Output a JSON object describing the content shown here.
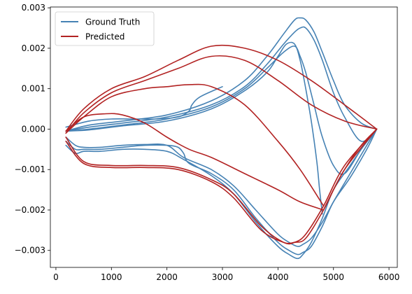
{
  "chart_data": {
    "type": "line",
    "title": "",
    "xlabel": "",
    "ylabel": "",
    "xlim": [
      -100,
      6150
    ],
    "ylim": [
      -0.00342,
      0.00302
    ],
    "x_ticks": [
      0,
      1000,
      2000,
      3000,
      4000,
      5000,
      6000
    ],
    "x_tick_labels": [
      "0",
      "1000",
      "2000",
      "3000",
      "4000",
      "5000",
      "6000"
    ],
    "y_ticks": [
      -0.003,
      -0.002,
      -0.001,
      0.0,
      0.001,
      0.002,
      0.003
    ],
    "y_tick_labels": [
      "−0.003",
      "−0.002",
      "−0.001",
      "0.000",
      "0.001",
      "0.002",
      "0.003"
    ],
    "grid": false,
    "legend_position": "upper-left",
    "legend": [
      {
        "label": "Ground Truth",
        "color": "#4682b4"
      },
      {
        "label": "Predicted",
        "color": "#b22222"
      }
    ],
    "series": [
      {
        "name": "Ground Truth",
        "color": "#4682b4",
        "traces": [
          {
            "x": [
              180,
              600,
              1200,
              2000,
              2800,
              3400,
              3800,
              4100,
              4300,
              4400,
              4500,
              4650,
              4800,
              5000,
              5200,
              5500,
              5780
            ],
            "y": [
              -5e-05,
              0.0001,
              0.0002,
              0.00035,
              0.0007,
              0.0012,
              0.0018,
              0.00235,
              0.0027,
              0.00275,
              0.0027,
              0.0024,
              0.0019,
              0.0012,
              0.0006,
              0.00015,
              0.0
            ]
          },
          {
            "x": [
              180,
              600,
              1200,
              2000,
              2800,
              3400,
              3800,
              4100,
              4300,
              4400,
              4500,
              4650,
              4800,
              5000,
              5200,
              5500,
              5780
            ],
            "y": [
              -5e-05,
              5e-05,
              0.00015,
              0.0003,
              0.0006,
              0.00105,
              0.0016,
              0.0021,
              0.0024,
              0.0025,
              0.0025,
              0.0022,
              0.0017,
              0.0009,
              0.0003,
              -0.0003,
              0.0
            ]
          },
          {
            "x": [
              180,
              600,
              1200,
              2000,
              2800,
              3400,
              3800,
              4100,
              4300,
              4400,
              4500,
              4650,
              4800,
              5000,
              5200,
              5500,
              5780
            ],
            "y": [
              -5e-05,
              0.0,
              0.0001,
              0.00025,
              0.00055,
              0.001,
              0.0015,
              0.0019,
              0.00205,
              0.0018,
              0.0014,
              0.0006,
              -0.0002,
              -0.0009,
              -0.0011,
              -0.0005,
              0.0
            ]
          },
          {
            "x": [
              180,
              600,
              1200,
              2000,
              2800,
              3400,
              3800,
              4000,
              4150,
              4300,
              4400,
              4500,
              4600,
              4700,
              4750,
              4800
            ],
            "y": [
              -5e-05,
              -2e-05,
              8e-05,
              0.0002,
              0.0005,
              0.00095,
              0.0014,
              0.0018,
              0.0021,
              0.0021,
              0.0017,
              0.001,
              0.0002,
              -0.0008,
              -0.0015,
              -0.0021
            ]
          },
          {
            "x": [
              180,
              350,
              500,
              800,
              1200,
              1600,
              2000,
              2200,
              2300,
              2400,
              2800,
              3200,
              3600,
              4000,
              4200,
              4350,
              4450,
              4600,
              4800,
              5000,
              5300,
              5600,
              5780
            ],
            "y": [
              -0.0003,
              -0.0005,
              -0.0005,
              -0.0005,
              -0.00045,
              -0.0004,
              -0.0004,
              -0.00045,
              -0.0006,
              -0.00085,
              -0.0011,
              -0.0015,
              -0.0022,
              -0.0028,
              -0.003,
              -0.0031,
              -0.00305,
              -0.0029,
              -0.0024,
              -0.0018,
              -0.0012,
              -0.0005,
              0.0
            ]
          },
          {
            "x": [
              180,
              350,
              500,
              800,
              1200,
              1600,
              2000,
              2300,
              2800,
              3200,
              3600,
              4000,
              4200,
              4350,
              4450,
              4600,
              4800,
              5000,
              5300,
              5600,
              5780
            ],
            "y": [
              -0.0004,
              -0.0006,
              -0.00055,
              -0.00055,
              -0.0005,
              -0.0005,
              -0.00055,
              -0.00075,
              -0.00115,
              -0.0016,
              -0.0023,
              -0.0029,
              -0.0031,
              -0.0032,
              -0.0031,
              -0.0028,
              -0.0022,
              -0.0015,
              -0.0009,
              -0.0003,
              0.0
            ]
          },
          {
            "x": [
              180,
              350,
              500,
              800,
              1200,
              1600,
              2000,
              2300,
              2800,
              3200,
              3600,
              4000,
              4200,
              4350,
              4450,
              4600,
              4800,
              5000,
              5300,
              5600,
              5780
            ],
            "y": [
              -0.0002,
              -0.0004,
              -0.00045,
              -0.00045,
              -0.0004,
              -0.00038,
              -0.0004,
              -0.0007,
              -0.001,
              -0.0014,
              -0.002,
              -0.0026,
              -0.0028,
              -0.0029,
              -0.00285,
              -0.0027,
              -0.0023,
              -0.0018,
              -0.0011,
              -0.0004,
              0.0
            ]
          },
          {
            "x": [
              180,
              600,
              1000,
              1400,
              1800,
              2200,
              2400,
              2450,
              2600,
              3000
            ],
            "y": [
              5e-05,
              0.0002,
              0.00025,
              0.00025,
              0.00025,
              0.0003,
              0.00045,
              0.0006,
              0.0008,
              0.00105
            ]
          }
        ]
      },
      {
        "name": "Predicted",
        "color": "#b22222",
        "traces": [
          {
            "x": [
              180,
              500,
              1000,
              1600,
              2200,
              2800,
              3400,
              4000,
              4600,
              5200,
              5780
            ],
            "y": [
              -5e-05,
              0.0005,
              0.001,
              0.0013,
              0.0017,
              0.00205,
              0.002,
              0.0017,
              0.0012,
              0.0006,
              0.0
            ]
          },
          {
            "x": [
              180,
              500,
              1000,
              1600,
              2200,
              2800,
              3400,
              4000,
              4600,
              5200,
              5780
            ],
            "y": [
              -0.0001,
              0.0004,
              0.0009,
              0.0012,
              0.0015,
              0.0018,
              0.0017,
              0.0012,
              0.0006,
              0.0002,
              0.0
            ]
          },
          {
            "x": [
              180,
              500,
              1000,
              1600,
              2000,
              2400,
              2800,
              3400,
              4000,
              4400,
              4820
            ],
            "y": [
              -0.0001,
              0.0003,
              0.0008,
              0.001,
              0.00105,
              0.0011,
              0.00105,
              0.0006,
              -0.0003,
              -0.001,
              -0.0019
            ]
          },
          {
            "x": [
              180,
              500,
              900,
              1200,
              1600,
              2000,
              2400,
              2800,
              3400,
              4000,
              4400,
              4820
            ],
            "y": [
              -5e-05,
              0.0003,
              0.00038,
              0.00035,
              0.00015,
              -0.0002,
              -0.0005,
              -0.0007,
              -0.0011,
              -0.0015,
              -0.0018,
              -0.002
            ]
          },
          {
            "x": [
              180,
              500,
              1000,
              1600,
              2200,
              2800,
              3200,
              3700,
              4100,
              4300,
              4500,
              4820,
              5200,
              5780
            ],
            "y": [
              -0.0002,
              -0.0008,
              -0.0009,
              -0.0009,
              -0.00095,
              -0.00125,
              -0.0016,
              -0.0024,
              -0.0028,
              -0.0028,
              -0.0026,
              -0.0019,
              -0.0009,
              0.0
            ]
          },
          {
            "x": [
              180,
              500,
              1000,
              1600,
              2200,
              2800,
              3200,
              3700,
              4100,
              4300,
              4500,
              4820,
              5200,
              5780
            ],
            "y": [
              -0.0003,
              -0.00085,
              -0.00095,
              -0.00095,
              -0.001,
              -0.0013,
              -0.0017,
              -0.0025,
              -0.0028,
              -0.0028,
              -0.0027,
              -0.002,
              -0.001,
              0.0
            ]
          },
          {
            "x": [
              4820,
              5000,
              5200,
              5500,
              5780
            ],
            "y": [
              -0.002,
              -0.0015,
              -0.001,
              -0.0004,
              0.0
            ]
          }
        ]
      }
    ]
  }
}
